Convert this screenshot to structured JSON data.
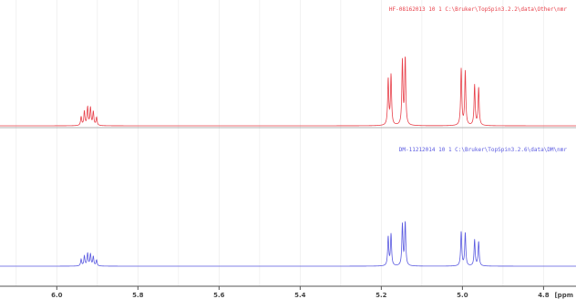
{
  "chart_data": [
    {
      "type": "line",
      "label": "HF-08162013  10  1  C:\\Bruker\\TopSpin3.2.2\\data\\Other\\nmr",
      "color": "#e8404a",
      "peaks": [
        {
          "ppm": 5.94,
          "h": 0.13
        },
        {
          "ppm": 5.932,
          "h": 0.21
        },
        {
          "ppm": 5.924,
          "h": 0.27
        },
        {
          "ppm": 5.917,
          "h": 0.26
        },
        {
          "ppm": 5.91,
          "h": 0.2
        },
        {
          "ppm": 5.902,
          "h": 0.12
        },
        {
          "ppm": 5.183,
          "h": 0.68
        },
        {
          "ppm": 5.176,
          "h": 0.74
        },
        {
          "ppm": 5.148,
          "h": 0.95
        },
        {
          "ppm": 5.141,
          "h": 1.0
        },
        {
          "ppm": 5.003,
          "h": 0.84
        },
        {
          "ppm": 4.993,
          "h": 0.8
        },
        {
          "ppm": 4.97,
          "h": 0.6
        },
        {
          "ppm": 4.96,
          "h": 0.56
        }
      ]
    },
    {
      "type": "line",
      "label": "DM-11212014  10  1  C:\\Bruker\\TopSpin3.2.6\\data\\DM\\nmr",
      "color": "#5a5ae0",
      "peaks": [
        {
          "ppm": 5.94,
          "h": 0.1
        },
        {
          "ppm": 5.932,
          "h": 0.15
        },
        {
          "ppm": 5.924,
          "h": 0.19
        },
        {
          "ppm": 5.917,
          "h": 0.18
        },
        {
          "ppm": 5.91,
          "h": 0.14
        },
        {
          "ppm": 5.902,
          "h": 0.09
        },
        {
          "ppm": 5.183,
          "h": 0.44
        },
        {
          "ppm": 5.176,
          "h": 0.48
        },
        {
          "ppm": 5.148,
          "h": 0.63
        },
        {
          "ppm": 5.141,
          "h": 0.66
        },
        {
          "ppm": 5.003,
          "h": 0.52
        },
        {
          "ppm": 4.993,
          "h": 0.5
        },
        {
          "ppm": 4.97,
          "h": 0.4
        },
        {
          "ppm": 4.96,
          "h": 0.37
        }
      ]
    }
  ],
  "x_axis": {
    "min": 4.72,
    "max": 6.14,
    "reversed": true,
    "ticks": [
      {
        "value": 6.0,
        "label": "6.0"
      },
      {
        "value": 5.8,
        "label": "5.8"
      },
      {
        "value": 5.6,
        "label": "5.6"
      },
      {
        "value": 5.4,
        "label": "5.4"
      },
      {
        "value": 5.2,
        "label": "5.2"
      },
      {
        "value": 5.0,
        "label": "5.0"
      },
      {
        "value": 4.8,
        "label": "4.8"
      }
    ],
    "unit_label": "[ppm"
  },
  "grid": true
}
